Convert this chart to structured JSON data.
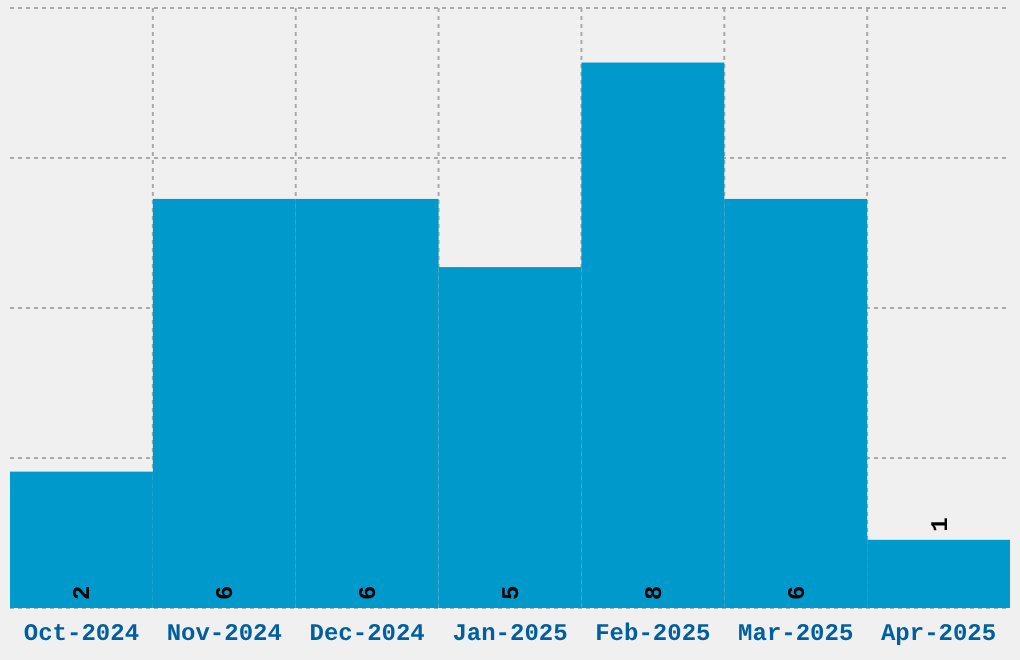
{
  "chart_data": {
    "type": "bar",
    "categories": [
      "Oct-2024",
      "Nov-2024",
      "Dec-2024",
      "Jan-2025",
      "Feb-2025",
      "Mar-2025",
      "Apr-2025"
    ],
    "values": [
      2,
      6,
      6,
      5,
      8,
      6,
      1
    ],
    "color": "#0099cc",
    "data_labels": true,
    "ylim": [
      0,
      8.8
    ],
    "yticks": [
      {
        "value": 0,
        "label": null
      },
      {
        "value": 2.2,
        "label": null
      },
      {
        "value": 4.4,
        "label": null
      },
      {
        "value": 6.6,
        "label": null
      },
      {
        "value": 8.8,
        "label": null
      }
    ],
    "tick_labels": "x",
    "grid": true
  }
}
